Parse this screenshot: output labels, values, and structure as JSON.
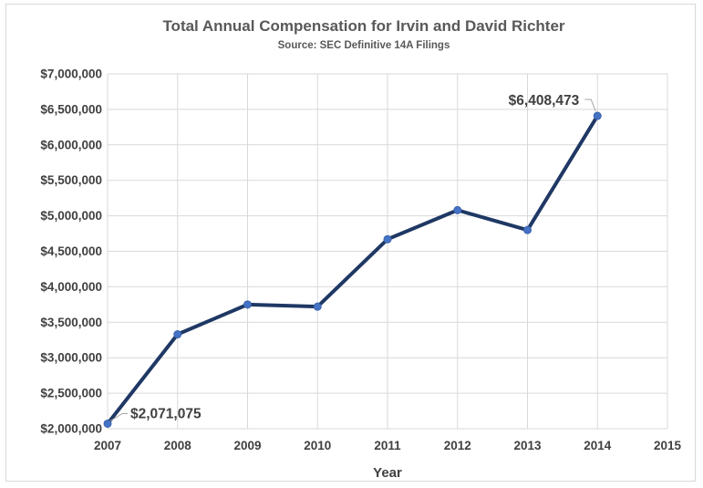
{
  "chart_data": {
    "type": "line",
    "title": "Total Annual Compensation for Irvin and David Richter",
    "subtitle": "Source: SEC Definitive 14A Filings",
    "xlabel": "Year",
    "ylabel": "",
    "x": [
      2007,
      2008,
      2009,
      2010,
      2011,
      2012,
      2013,
      2014
    ],
    "series": [
      {
        "values": [
          2071075,
          3330000,
          3750000,
          3720000,
          4670000,
          5080000,
          4800000,
          6408473
        ]
      }
    ],
    "xlim": [
      2007,
      2015
    ],
    "ylim": [
      2000000,
      7000000
    ],
    "x_ticks": [
      "2007",
      "2008",
      "2009",
      "2010",
      "2011",
      "2012",
      "2013",
      "2014",
      "2015"
    ],
    "y_ticks": [
      "$2,000,000",
      "$2,500,000",
      "$3,000,000",
      "$3,500,000",
      "$4,000,000",
      "$4,500,000",
      "$5,000,000",
      "$5,500,000",
      "$6,000,000",
      "$6,500,000",
      "$7,000,000"
    ],
    "annotations": [
      {
        "x": 2007,
        "text": "$2,071,075"
      },
      {
        "x": 2014,
        "text": "$6,408,473"
      }
    ],
    "grid": true,
    "line_color": "#1f3864",
    "marker_color": "#4472c4"
  }
}
